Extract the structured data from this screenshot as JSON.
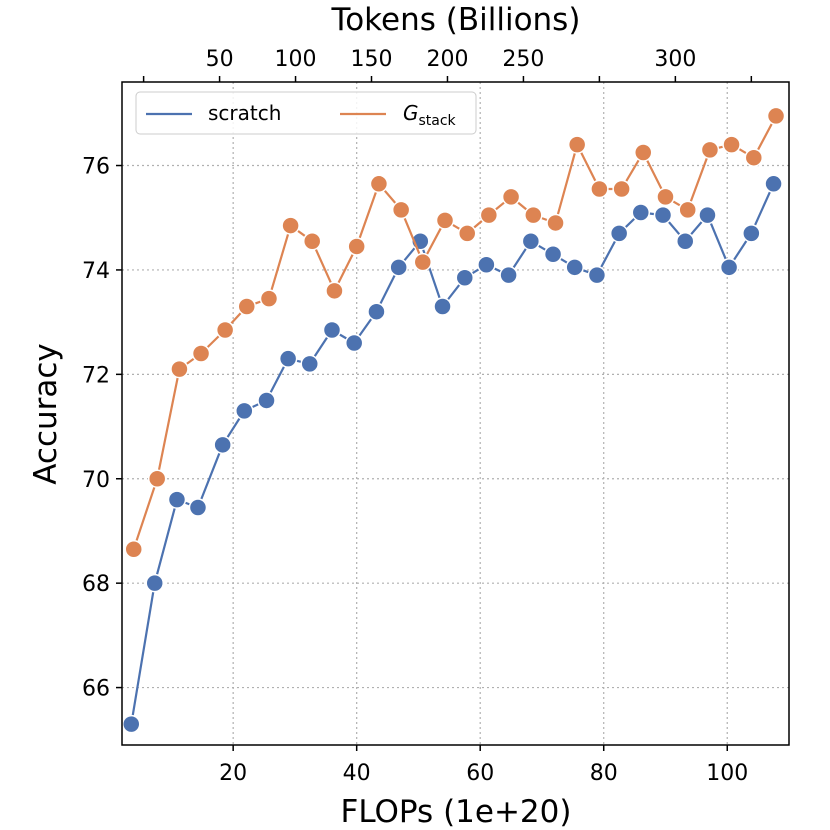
{
  "chart_data": {
    "type": "line",
    "xlabel": "FLOPs (1e+20)",
    "x2label": "Tokens (Billions)",
    "ylabel": "Accuracy",
    "xlim": [
      2,
      110
    ],
    "ylim": [
      64.9,
      77.6
    ],
    "x_ticks": [
      20,
      40,
      60,
      80,
      100
    ],
    "x_tick_labels": [
      "20",
      "40",
      "60",
      "80",
      "100"
    ],
    "top_ticks_x": [
      5.5,
      17.8,
      30.1,
      42.4,
      54.7,
      67.0,
      79.3,
      91.6,
      103.9
    ],
    "top_tick_labels": [
      "",
      "50",
      "100",
      "150",
      "200",
      "250",
      "",
      "300",
      ""
    ],
    "top_tick_label_pos": [
      17.8,
      30.1,
      42.4,
      54.7,
      67.0,
      79.3,
      91.6,
      103.9
    ],
    "top_tick_label_text": [
      "50",
      "100",
      "150",
      "200",
      "250",
      "",
      "300",
      ""
    ],
    "y_ticks": [
      66,
      68,
      70,
      72,
      74,
      76
    ],
    "y_tick_labels": [
      "66",
      "68",
      "70",
      "72",
      "74",
      "76"
    ],
    "grid": true,
    "legend": "top-left",
    "series": [
      {
        "name": "scratch",
        "color": "#4c72b0",
        "x": [
          3.5,
          7.3,
          10.9,
          14.3,
          18.3,
          21.8,
          25.4,
          28.9,
          32.4,
          36.0,
          39.6,
          43.2,
          46.8,
          50.3,
          53.9,
          57.5,
          61.0,
          64.6,
          68.2,
          71.8,
          75.3,
          78.9,
          82.5,
          86.0,
          89.6,
          93.2,
          96.8,
          100.3,
          103.9,
          107.5
        ],
        "y": [
          65.3,
          68.0,
          69.6,
          69.45,
          70.65,
          71.3,
          71.5,
          72.3,
          72.2,
          72.85,
          72.6,
          73.2,
          74.05,
          74.55,
          73.3,
          73.85,
          74.1,
          73.9,
          74.55,
          74.3,
          74.05,
          73.9,
          74.7,
          75.1,
          75.05,
          74.55,
          75.05,
          74.05,
          74.7,
          75.65
        ]
      },
      {
        "name": "Gstack",
        "color": "#dd8452",
        "x": [
          3.9,
          7.7,
          11.3,
          14.8,
          18.7,
          22.2,
          25.8,
          29.3,
          32.8,
          36.4,
          40.0,
          43.6,
          47.2,
          50.7,
          54.3,
          57.9,
          61.4,
          65.0,
          68.6,
          72.2,
          75.7,
          79.3,
          82.9,
          86.4,
          90.0,
          93.6,
          97.2,
          100.7,
          104.3,
          107.9
        ],
        "y": [
          68.65,
          70.0,
          72.1,
          72.4,
          72.85,
          73.3,
          73.45,
          74.85,
          74.55,
          73.6,
          74.45,
          75.65,
          75.15,
          74.15,
          74.95,
          74.7,
          75.05,
          75.4,
          75.05,
          74.9,
          76.4,
          75.55,
          75.55,
          76.25,
          75.4,
          75.15,
          76.3,
          76.4,
          76.15,
          76.95
        ]
      }
    ],
    "legend_entries": [
      {
        "label": "scratch",
        "color": "#4c72b0"
      },
      {
        "label_main": "G",
        "label_sub": "stack",
        "color": "#dd8452"
      }
    ]
  }
}
